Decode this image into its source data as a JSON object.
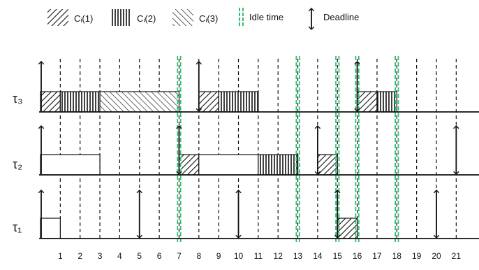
{
  "legend": {
    "c1_label": "Cᵢ(1)",
    "c2_label": "Cᵢ(2)",
    "c3_label": "Cᵢ(3)",
    "idle_label": "Idle time",
    "deadline_label": "Deadline"
  },
  "time_ticks": [
    "1",
    "2",
    "3",
    "4",
    "5",
    "6",
    "7",
    "8",
    "9",
    "10",
    "11",
    "12",
    "13",
    "14",
    "15",
    "16",
    "17",
    "18",
    "19",
    "20",
    "21"
  ],
  "idle_times": [
    7,
    13,
    15,
    16,
    18
  ],
  "colors": {
    "idle": "#2fbf71",
    "ink": "#111111"
  },
  "tasks": [
    {
      "label": "τ₃",
      "blocks": [
        {
          "start": 0,
          "end": 1,
          "pattern": "c1"
        },
        {
          "start": 1,
          "end": 3,
          "pattern": "c2"
        },
        {
          "start": 3,
          "end": 7,
          "pattern": "c3"
        },
        {
          "start": 8,
          "end": 9,
          "pattern": "c1"
        },
        {
          "start": 9,
          "end": 11,
          "pattern": "c2"
        },
        {
          "start": 16,
          "end": 17,
          "pattern": "c1"
        },
        {
          "start": 17,
          "end": 18,
          "pattern": "c2"
        }
      ],
      "arrows": [
        {
          "t": 0,
          "kind": "up"
        },
        {
          "t": 8,
          "kind": "both"
        },
        {
          "t": 16,
          "kind": "both"
        }
      ]
    },
    {
      "label": "τ₂",
      "blocks": [
        {
          "start": 0,
          "end": 3,
          "pattern": "empty"
        },
        {
          "start": 7,
          "end": 8,
          "pattern": "c1"
        },
        {
          "start": 8,
          "end": 11,
          "pattern": "empty"
        },
        {
          "start": 11,
          "end": 13,
          "pattern": "c2"
        },
        {
          "start": 14,
          "end": 15,
          "pattern": "c1"
        }
      ],
      "arrows": [
        {
          "t": 0,
          "kind": "up"
        },
        {
          "t": 7,
          "kind": "both"
        },
        {
          "t": 14,
          "kind": "both"
        },
        {
          "t": 21,
          "kind": "both"
        }
      ]
    },
    {
      "label": "τ₁",
      "blocks": [
        {
          "start": 0,
          "end": 1,
          "pattern": "empty"
        },
        {
          "start": 15,
          "end": 16,
          "pattern": "c1"
        }
      ],
      "arrows": [
        {
          "t": 0,
          "kind": "up"
        },
        {
          "t": 5,
          "kind": "both"
        },
        {
          "t": 10,
          "kind": "both"
        },
        {
          "t": 15,
          "kind": "both"
        },
        {
          "t": 20,
          "kind": "both"
        }
      ]
    }
  ]
}
